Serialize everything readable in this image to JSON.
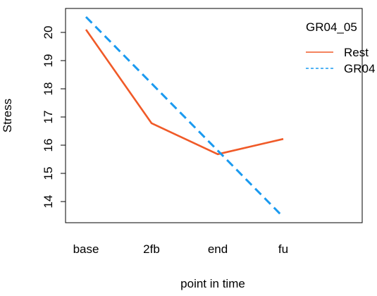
{
  "chart_data": {
    "type": "line",
    "xlabel": "point in time",
    "ylabel": "Stress",
    "categories": [
      "base",
      "2fb",
      "end",
      "fu"
    ],
    "yticks": [
      "14",
      "15",
      "16",
      "17",
      "18",
      "19",
      "20"
    ],
    "ylim": [
      13.25,
      20.85
    ],
    "grid": false,
    "legend": {
      "title": "GR04_05",
      "position": "top-right",
      "entries": [
        "Rest",
        "GR04"
      ]
    },
    "series": [
      {
        "name": "Rest",
        "values": [
          20.1,
          16.78,
          15.68,
          16.22
        ],
        "color": "#f05a28",
        "dash": "solid"
      },
      {
        "name": "GR04",
        "values": [
          20.55,
          null,
          null,
          13.45
        ],
        "color": "#1a9af0",
        "dash": "dashed"
      }
    ]
  }
}
